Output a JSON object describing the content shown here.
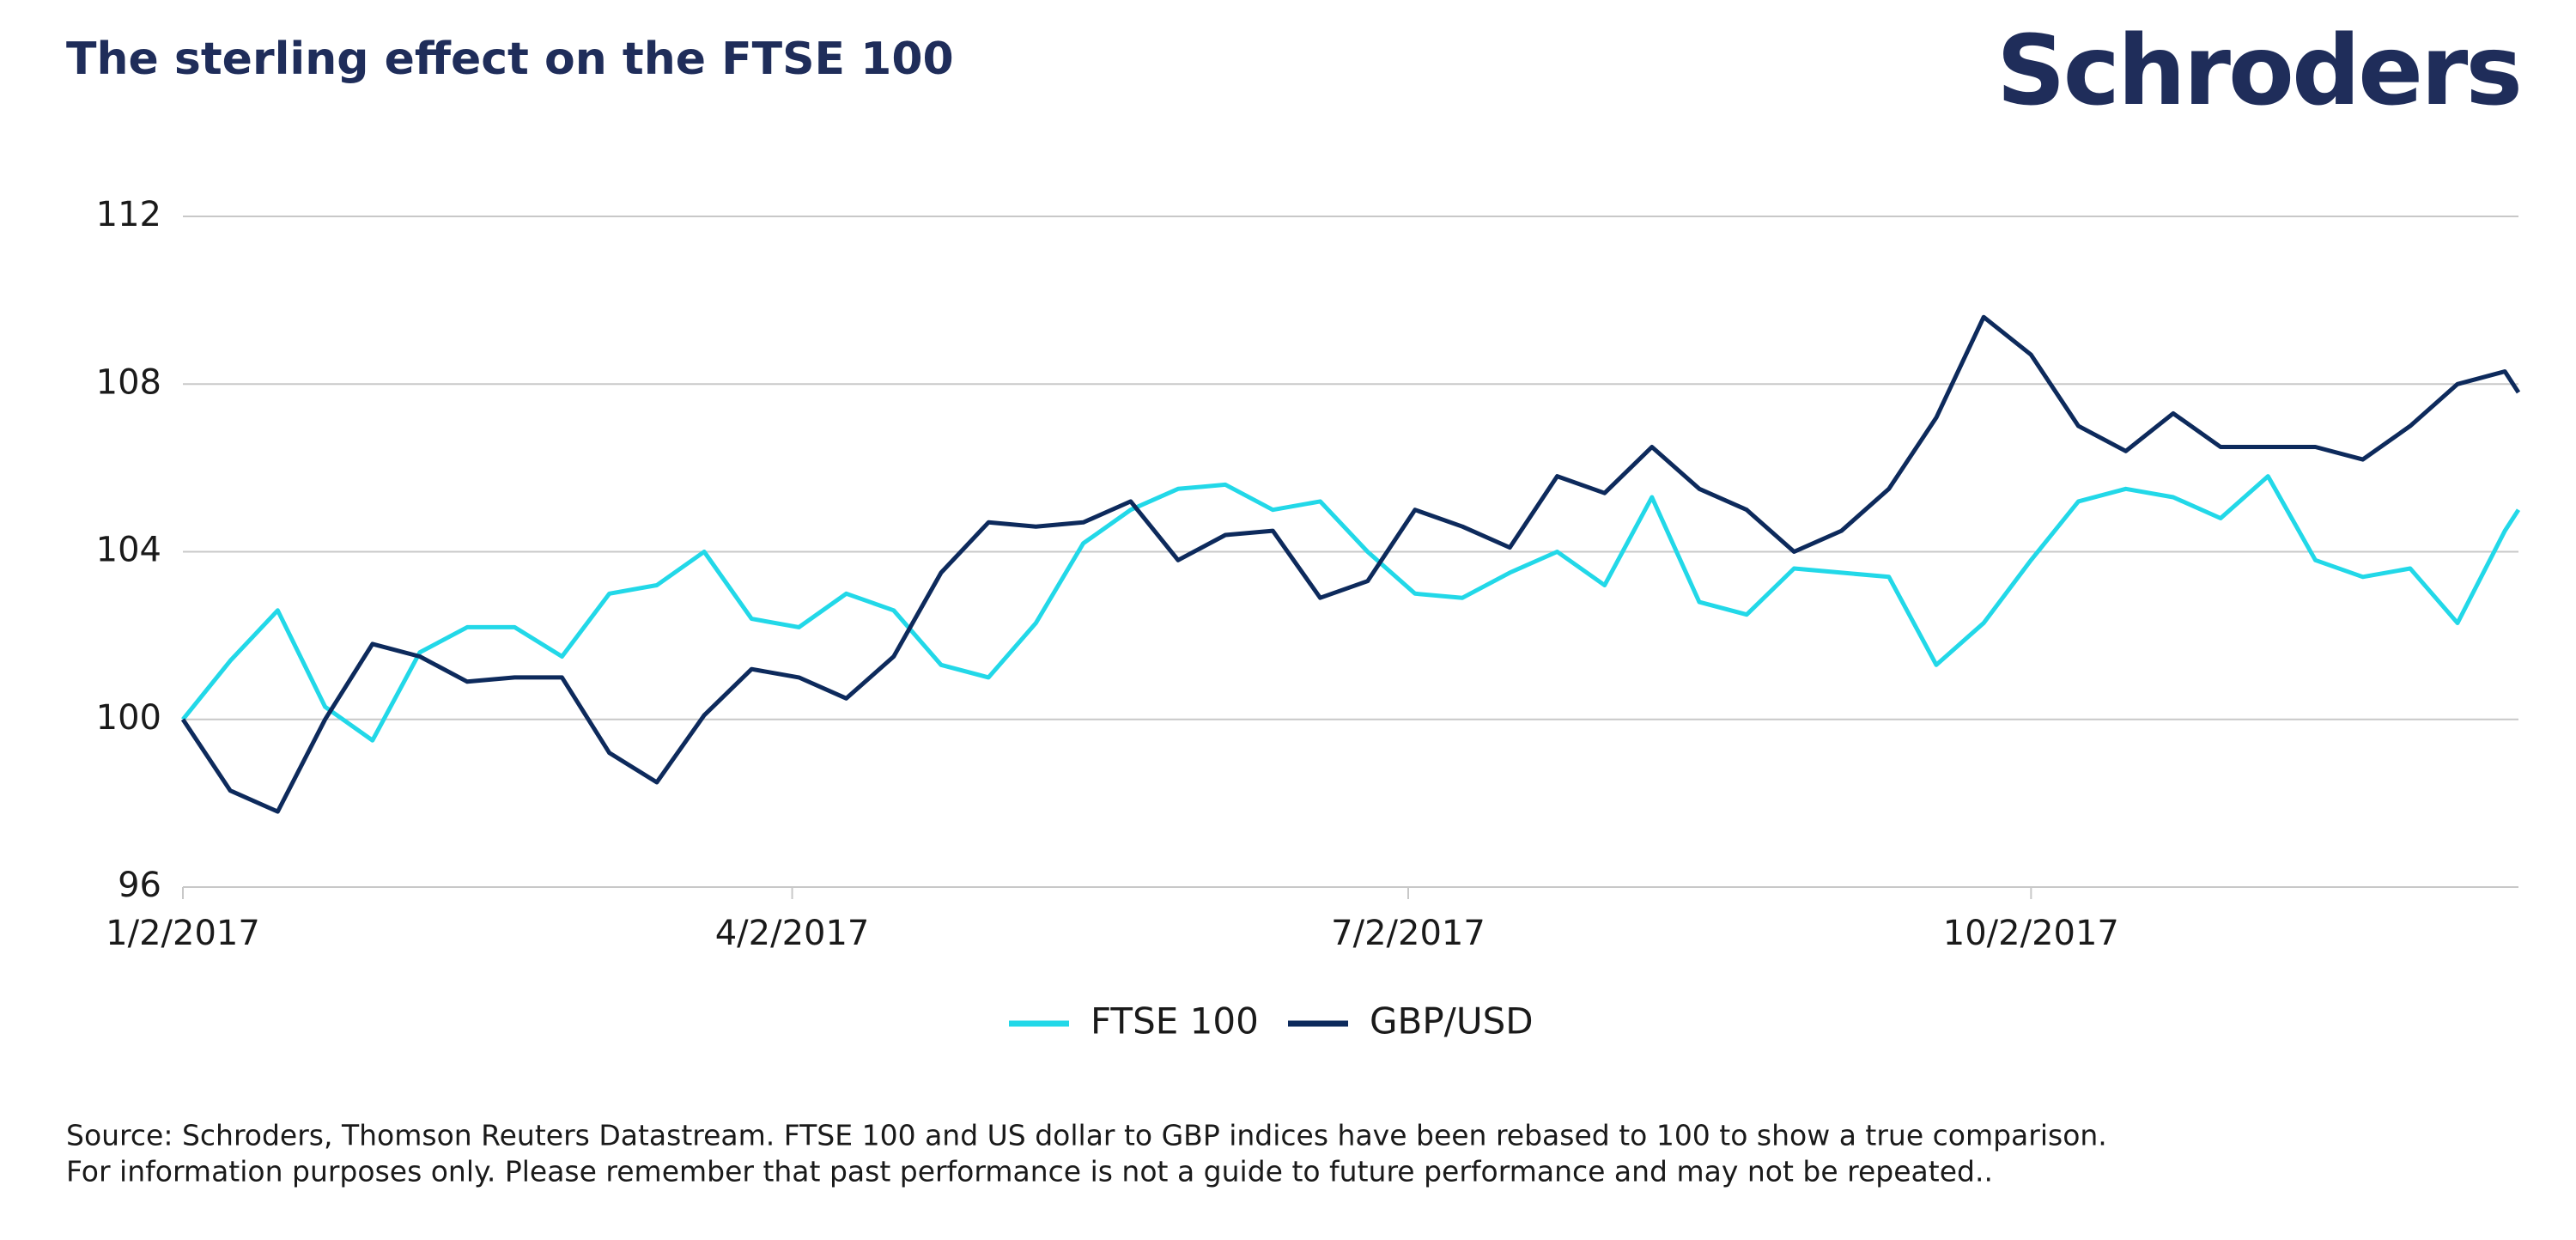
{
  "logo": "Schroders",
  "chart_data": {
    "type": "line",
    "title": "The sterling effect on the FTSE 100",
    "x": [
      "2017-01-02",
      "2017-01-09",
      "2017-01-16",
      "2017-01-23",
      "2017-01-30",
      "2017-02-06",
      "2017-02-13",
      "2017-02-20",
      "2017-02-27",
      "2017-03-06",
      "2017-03-13",
      "2017-03-20",
      "2017-03-27",
      "2017-04-03",
      "2017-04-10",
      "2017-04-17",
      "2017-04-24",
      "2017-05-01",
      "2017-05-08",
      "2017-05-15",
      "2017-05-22",
      "2017-05-29",
      "2017-06-05",
      "2017-06-12",
      "2017-06-19",
      "2017-06-26",
      "2017-07-03",
      "2017-07-10",
      "2017-07-17",
      "2017-07-24",
      "2017-07-31",
      "2017-08-07",
      "2017-08-14",
      "2017-08-21",
      "2017-08-28",
      "2017-09-04",
      "2017-09-11",
      "2017-09-18",
      "2017-09-25",
      "2017-10-02",
      "2017-10-09",
      "2017-10-16",
      "2017-10-23",
      "2017-10-30",
      "2017-11-06",
      "2017-11-13",
      "2017-11-20",
      "2017-11-27",
      "2017-12-04",
      "2017-12-11",
      "2017-12-13"
    ],
    "series": [
      {
        "name": "FTSE 100",
        "color": "#22d8e8",
        "values": [
          100,
          101.4,
          102.6,
          100.3,
          99.5,
          101.6,
          102.2,
          102.2,
          101.5,
          103.0,
          103.2,
          104.0,
          102.4,
          102.2,
          103.0,
          102.6,
          101.3,
          101.0,
          102.3,
          104.2,
          105.0,
          105.5,
          105.6,
          105.0,
          105.2,
          104.0,
          103.0,
          102.9,
          103.5,
          104.0,
          103.2,
          105.3,
          102.8,
          102.5,
          103.6,
          103.5,
          103.4,
          101.3,
          102.3,
          103.8,
          105.2,
          105.5,
          105.3,
          104.8,
          105.8,
          103.8,
          103.4,
          103.6,
          102.3,
          104.5,
          105.0
        ]
      },
      {
        "name": "GBP/USD",
        "color": "#0d2a5c",
        "values": [
          100,
          98.3,
          97.8,
          100.0,
          101.8,
          101.5,
          100.9,
          101.0,
          101.0,
          99.2,
          98.5,
          100.1,
          101.2,
          101.0,
          100.5,
          101.5,
          103.5,
          104.7,
          104.6,
          104.7,
          105.2,
          103.8,
          104.4,
          104.5,
          102.9,
          103.3,
          105.0,
          104.6,
          104.1,
          105.8,
          105.4,
          106.5,
          105.5,
          105.0,
          104.0,
          104.5,
          105.5,
          107.2,
          109.6,
          108.7,
          107.0,
          106.4,
          107.3,
          106.5,
          106.5,
          106.5,
          106.2,
          107.0,
          108.0,
          108.3,
          107.8
        ]
      }
    ],
    "xlim": [
      "2017-01-02",
      "2017-12-13"
    ],
    "xticks": [
      {
        "value": "2017-01-02",
        "label": "1/2/2017"
      },
      {
        "value": "2017-04-02",
        "label": "4/2/2017"
      },
      {
        "value": "2017-07-02",
        "label": "7/2/2017"
      },
      {
        "value": "2017-10-02",
        "label": "10/2/2017"
      }
    ],
    "ylim": [
      96,
      112
    ],
    "yticks": [
      96,
      100,
      104,
      108,
      112
    ],
    "grid": true,
    "notes": [
      "Source: Schroders, Thomson Reuters Datastream. FTSE 100 and US dollar to GBP indices have been rebased to 100 to show a true comparison.",
      "For information purposes only. Please remember that past performance is not a guide to future performance and may not be repeated.."
    ]
  }
}
